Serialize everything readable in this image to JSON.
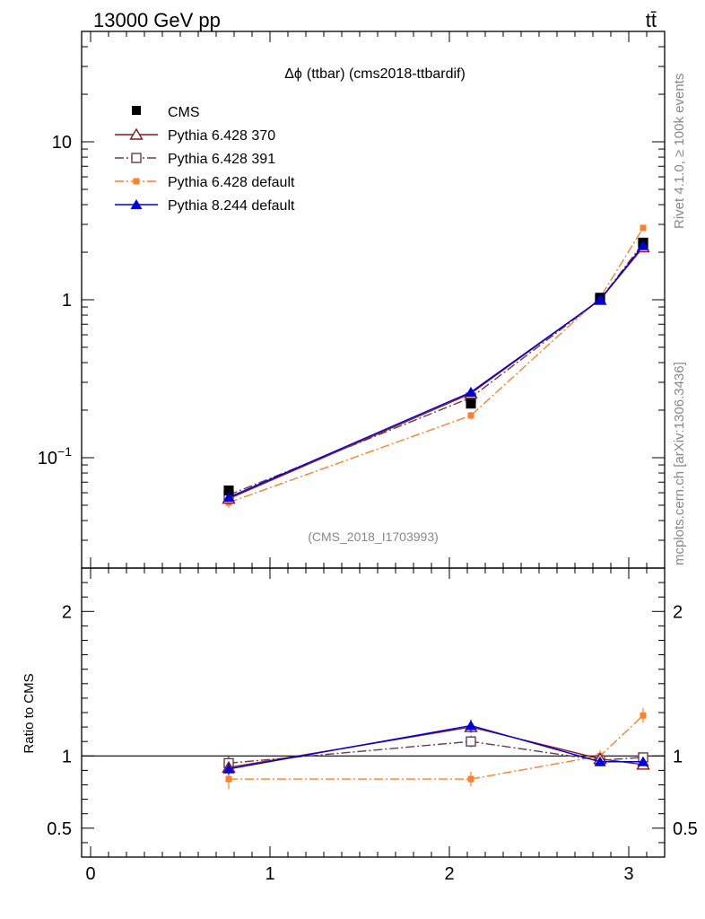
{
  "chart_data": {
    "type": "line",
    "header_left": "13000 GeV pp",
    "header_right": "tt̄",
    "title_symbol": "Δϕ",
    "title_rest": "(ttbar) (cms2018-ttbardif)",
    "side_label_top": "Rivet 4.1.0, ≥ 100k events",
    "side_label_bottom": "mcplots.cern.ch [arXiv:1306.3436]",
    "analysis_label": "(CMS_2018_I1703993)",
    "ratio_ylabel": "Ratio to CMS",
    "x": [
      0.77,
      2.12,
      2.84,
      3.08
    ],
    "xlim": [
      -0.05,
      3.2
    ],
    "main_ylim": [
      0.02,
      50
    ],
    "ratio_ylim": [
      0.3,
      2.3
    ],
    "xticks": [
      {
        "value": 0,
        "label": "0"
      },
      {
        "value": 1,
        "label": "1"
      },
      {
        "value": 2,
        "label": "2"
      },
      {
        "value": 3,
        "label": "3"
      }
    ],
    "main_yticks": [
      {
        "value": 0.1,
        "label": "10",
        "exp": "−1"
      },
      {
        "value": 1,
        "label": "1",
        "exp": ""
      },
      {
        "value": 10,
        "label": "10",
        "exp": ""
      }
    ],
    "ratio_yticks": [
      {
        "value": 0.5,
        "label": "0.5"
      },
      {
        "value": 1,
        "label": "1"
      },
      {
        "value": 2,
        "label": "2"
      }
    ],
    "series": [
      {
        "name": "CMS",
        "color": "#000000",
        "marker": "square",
        "dash": "",
        "line": false,
        "values": [
          0.062,
          0.22,
          1.03,
          2.3
        ],
        "errors": [
          0.003,
          0.005,
          0.02,
          0.05
        ],
        "ratio": [
          1.0,
          1.0,
          1.0,
          1.0
        ],
        "ratio_errors": [
          0.05,
          0.03,
          0.02,
          0.02
        ]
      },
      {
        "name": "Pythia 6.428 370",
        "color": "#8b1a1a",
        "marker": "triangle-open",
        "dash": "",
        "line": true,
        "values": [
          0.055,
          0.255,
          1.0,
          2.15
        ],
        "errors": [
          0.002,
          0.005,
          0.02,
          0.04
        ],
        "ratio": [
          0.92,
          1.2,
          0.98,
          0.94
        ],
        "ratio_errors": [
          0.04,
          0.04,
          0.03,
          0.03
        ]
      },
      {
        "name": "Pythia 6.428 391",
        "color": "#6b3a4a",
        "marker": "square-open",
        "dash": "10,3,2,3",
        "line": true,
        "values": [
          0.058,
          0.24,
          1.0,
          2.28
        ],
        "errors": [
          0.002,
          0.005,
          0.02,
          0.04
        ],
        "ratio": [
          0.95,
          1.1,
          0.97,
          0.99
        ],
        "ratio_errors": [
          0.05,
          0.04,
          0.03,
          0.03
        ]
      },
      {
        "name": "Pythia 6.428 default",
        "color": "#ff7f2a",
        "marker": "square-small",
        "dash": "10,3,2,3",
        "line": true,
        "values": [
          0.052,
          0.185,
          1.03,
          2.85
        ],
        "errors": [
          0.004,
          0.01,
          0.03,
          0.06
        ],
        "ratio": [
          0.84,
          0.84,
          1.0,
          1.28
        ],
        "ratio_errors": [
          0.07,
          0.05,
          0.04,
          0.05
        ]
      },
      {
        "name": "Pythia 8.244 default",
        "color": "#0000dd",
        "marker": "triangle",
        "dash": "",
        "line": true,
        "values": [
          0.056,
          0.26,
          1.0,
          2.2
        ],
        "errors": [
          0.002,
          0.005,
          0.02,
          0.04
        ],
        "ratio": [
          0.91,
          1.21,
          0.96,
          0.96
        ],
        "ratio_errors": [
          0.04,
          0.04,
          0.03,
          0.03
        ]
      }
    ]
  }
}
